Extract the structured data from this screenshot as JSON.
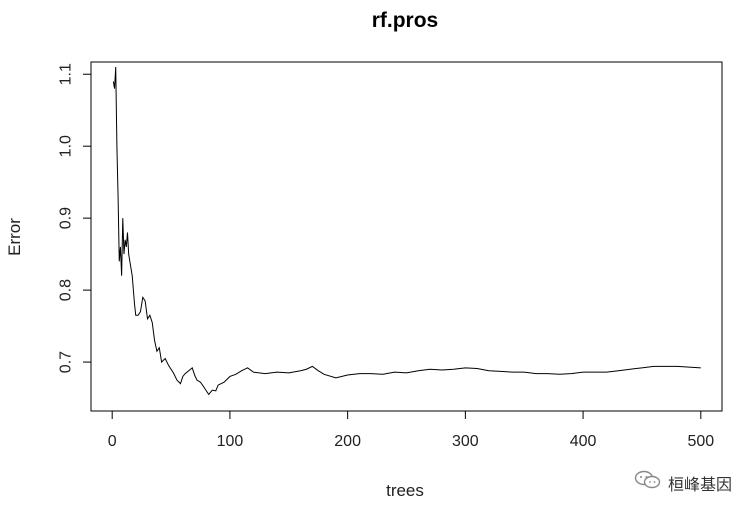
{
  "chart_data": {
    "type": "line",
    "title": "rf.pros",
    "xlabel": "trees",
    "ylabel": "Error",
    "xlim": [
      -18,
      518
    ],
    "ylim": [
      0.632,
      1.117
    ],
    "x_ticks": [
      0,
      100,
      200,
      300,
      400,
      500
    ],
    "x_tick_labels": [
      "0",
      "100",
      "200",
      "300",
      "400",
      "500"
    ],
    "y_ticks": [
      0.7,
      0.8,
      0.9,
      1.0,
      1.1
    ],
    "y_tick_labels": [
      "0.7",
      "0.8",
      "0.9",
      "1.0",
      "1.1"
    ],
    "grid": false,
    "legend": "none",
    "line_color": "#000000",
    "series": [
      {
        "x": [
          1,
          2,
          3,
          4,
          5,
          6,
          7,
          8,
          9,
          10,
          11,
          12,
          13,
          14,
          15,
          16,
          17,
          18,
          19,
          20,
          22,
          24,
          26,
          28,
          30,
          32,
          34,
          36,
          38,
          40,
          42,
          45,
          48,
          50,
          52,
          55,
          58,
          60,
          62,
          65,
          68,
          70,
          72,
          75,
          78,
          80,
          82,
          85,
          88,
          90,
          95,
          100,
          105,
          110,
          115,
          120,
          130,
          140,
          150,
          160,
          165,
          170,
          175,
          180,
          190,
          200,
          210,
          220,
          230,
          240,
          250,
          260,
          270,
          280,
          290,
          300,
          310,
          320,
          330,
          340,
          350,
          360,
          370,
          380,
          390,
          400,
          410,
          420,
          430,
          440,
          450,
          460,
          470,
          480,
          490,
          500
        ],
        "y": [
          1.09,
          1.08,
          1.11,
          1.0,
          0.93,
          0.84,
          0.86,
          0.82,
          0.9,
          0.85,
          0.87,
          0.86,
          0.88,
          0.85,
          0.84,
          0.83,
          0.82,
          0.8,
          0.78,
          0.765,
          0.765,
          0.77,
          0.79,
          0.785,
          0.76,
          0.765,
          0.755,
          0.73,
          0.715,
          0.72,
          0.7,
          0.705,
          0.695,
          0.69,
          0.685,
          0.675,
          0.67,
          0.68,
          0.684,
          0.688,
          0.692,
          0.682,
          0.675,
          0.672,
          0.665,
          0.66,
          0.655,
          0.661,
          0.66,
          0.668,
          0.672,
          0.68,
          0.683,
          0.688,
          0.692,
          0.686,
          0.684,
          0.686,
          0.685,
          0.688,
          0.69,
          0.694,
          0.688,
          0.683,
          0.678,
          0.682,
          0.684,
          0.684,
          0.683,
          0.686,
          0.685,
          0.688,
          0.69,
          0.689,
          0.69,
          0.692,
          0.691,
          0.688,
          0.687,
          0.686,
          0.686,
          0.684,
          0.684,
          0.683,
          0.684,
          0.686,
          0.686,
          0.686,
          0.688,
          0.69,
          0.692,
          0.694,
          0.694,
          0.694,
          0.693,
          0.692
        ]
      }
    ]
  },
  "watermark": {
    "icon": "wechat-icon",
    "text": "桓峰基因"
  }
}
